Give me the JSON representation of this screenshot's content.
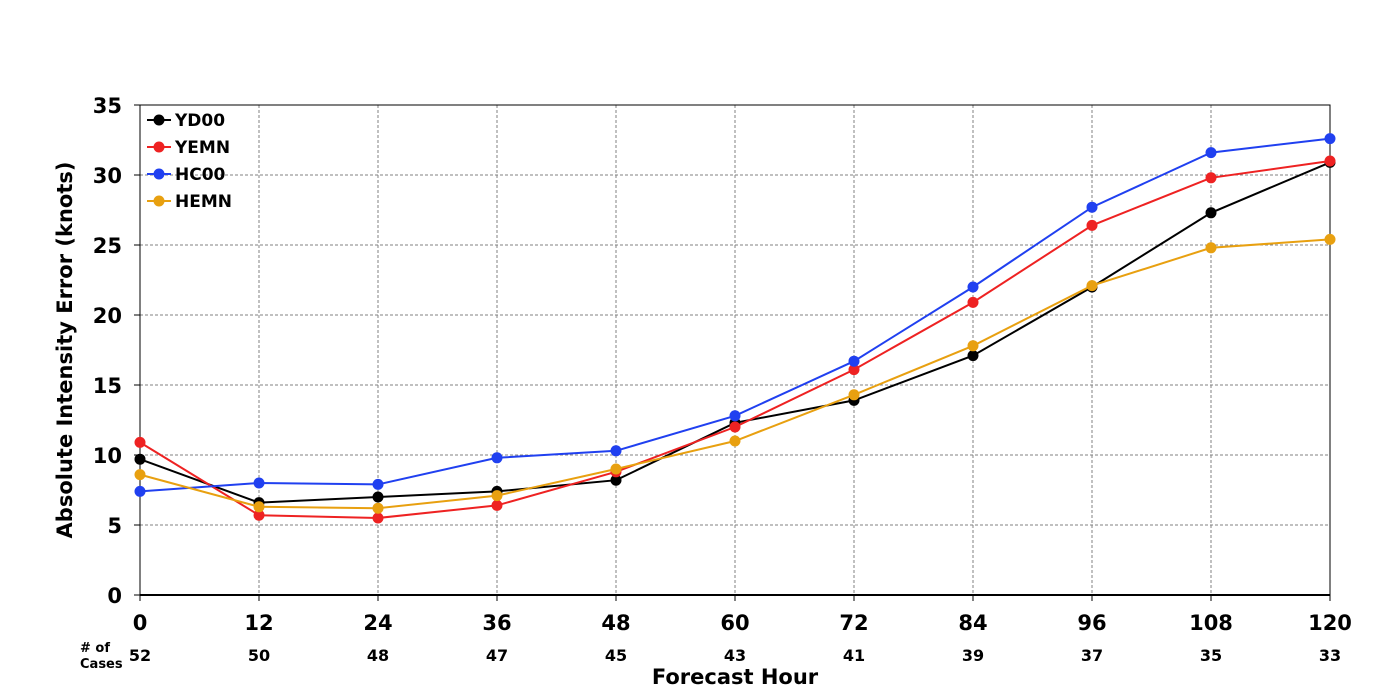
{
  "chart_data": {
    "type": "line",
    "title": "",
    "xlabel": "Forecast Hour",
    "ylabel": "Absolute Intensity Error (knots)",
    "x": [
      0,
      12,
      24,
      36,
      48,
      60,
      72,
      84,
      96,
      108,
      120
    ],
    "x_tick_labels": [
      "0",
      "12",
      "24",
      "36",
      "48",
      "60",
      "72",
      "84",
      "96",
      "108",
      "120"
    ],
    "y_tick_labels": [
      "0",
      "5",
      "10",
      "15",
      "20",
      "25",
      "30",
      "35"
    ],
    "xlim": [
      0,
      120
    ],
    "ylim": [
      0,
      35
    ],
    "grid": true,
    "legend_position": "top-left",
    "cases_label": [
      "# of",
      "Cases"
    ],
    "cases": [
      "52",
      "50",
      "48",
      "47",
      "45",
      "43",
      "41",
      "39",
      "37",
      "35",
      "33"
    ],
    "series": [
      {
        "name": "YD00",
        "color": "#000000",
        "values": [
          9.7,
          6.6,
          7.0,
          7.4,
          8.2,
          12.3,
          13.9,
          17.1,
          22.0,
          27.3,
          30.9
        ]
      },
      {
        "name": "YEMN",
        "color": "#ee2222",
        "values": [
          10.9,
          5.7,
          5.5,
          6.4,
          8.8,
          12.0,
          16.1,
          20.9,
          26.4,
          29.8,
          31.0
        ]
      },
      {
        "name": "HC00",
        "color": "#2040f0",
        "values": [
          7.4,
          8.0,
          7.9,
          9.8,
          10.3,
          12.8,
          16.7,
          22.0,
          27.7,
          31.6,
          32.6
        ]
      },
      {
        "name": "HEMN",
        "color": "#e8a010",
        "values": [
          8.6,
          6.3,
          6.2,
          7.1,
          9.0,
          11.0,
          14.3,
          17.8,
          22.1,
          24.8,
          25.4
        ]
      }
    ]
  }
}
